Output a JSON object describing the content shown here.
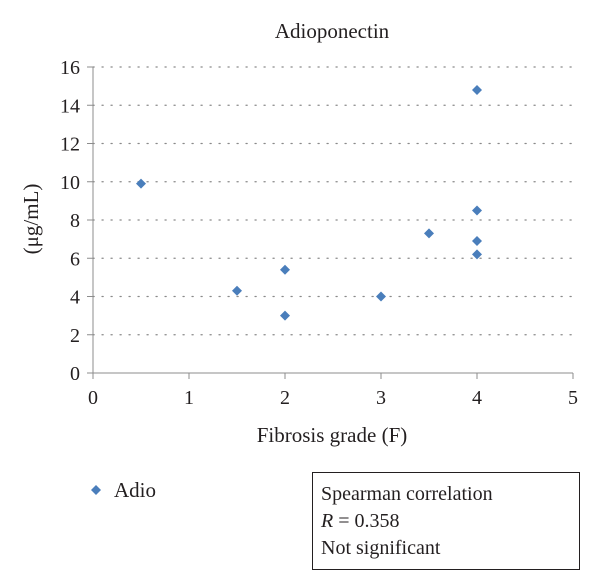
{
  "chart_data": {
    "type": "scatter",
    "title": "Adioponectin",
    "xlabel": "Fibrosis grade (F)",
    "ylabel": "(μg/mL)",
    "xlim": [
      0,
      5
    ],
    "ylim": [
      0,
      16
    ],
    "xticks": [
      "0",
      "1",
      "2",
      "3",
      "4",
      "5"
    ],
    "yticks": [
      "0",
      "2",
      "4",
      "6",
      "8",
      "10",
      "12",
      "14",
      "16"
    ],
    "grid": "horizontal-dotted",
    "legend_position": "bottom-left",
    "series": [
      {
        "name": "Adio",
        "color": "#4a7ebb",
        "marker": "diamond",
        "x": [
          0.5,
          1.5,
          2,
          2,
          3,
          3.5,
          4,
          4,
          4,
          4
        ],
        "y": [
          9.9,
          4.3,
          5.4,
          3.0,
          4.0,
          7.3,
          14.8,
          8.5,
          6.9,
          6.2
        ]
      }
    ]
  },
  "stats_box": {
    "line1": "Spearman correlation",
    "r_symbol": "R",
    "r_value": " = 0.358",
    "line3": "Not significant"
  }
}
